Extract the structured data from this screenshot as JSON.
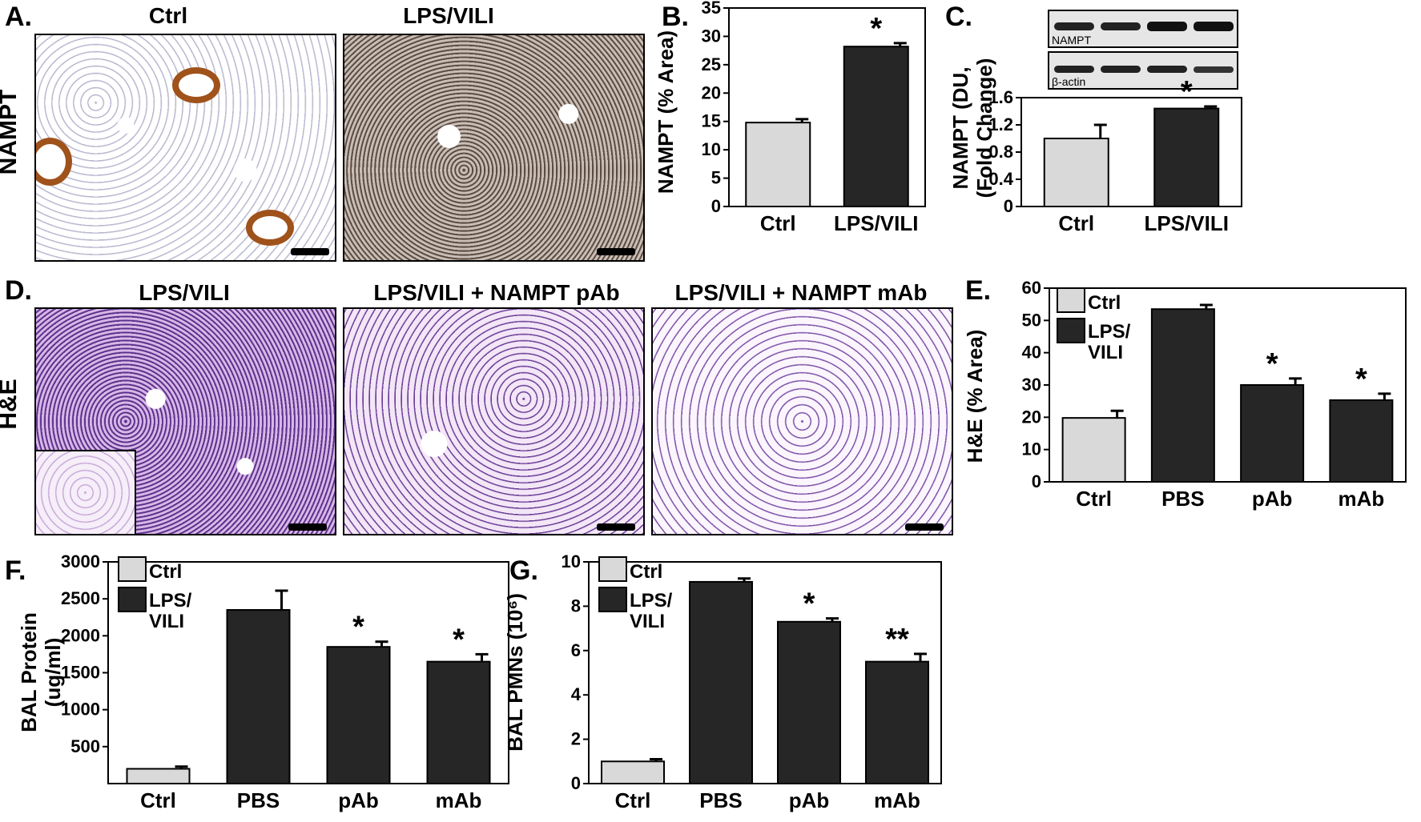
{
  "panels": {
    "A": {
      "label": "A.",
      "row_label": "NAMPT",
      "titles": [
        "Ctrl",
        "LPS/VILI"
      ]
    },
    "B": {
      "label": "B."
    },
    "C": {
      "label": "C.",
      "blot_labels": [
        "NAMPT",
        "β-actin"
      ]
    },
    "D": {
      "label": "D.",
      "row_label": "H&E",
      "titles": [
        "LPS/VILI",
        "LPS/VILI + NAMPT pAb",
        "LPS/VILI + NAMPT mAb"
      ]
    },
    "E": {
      "label": "E."
    },
    "F": {
      "label": "F."
    },
    "G": {
      "label": "G."
    }
  },
  "colors": {
    "ctrl": "#d9d9d9",
    "treated": "#262626",
    "axis": "#000000"
  },
  "chart_data": [
    {
      "id": "B",
      "type": "bar",
      "categories": [
        "Ctrl",
        "LPS/VILI"
      ],
      "values": [
        14.8,
        28.2
      ],
      "errors": [
        0.6,
        0.6
      ],
      "annotations": [
        "",
        "*"
      ],
      "ylabel": "NAMPT (% Area)",
      "ylim": [
        0,
        35
      ],
      "yticks": [
        0,
        5,
        10,
        15,
        20,
        25,
        30,
        35
      ]
    },
    {
      "id": "C",
      "type": "bar",
      "categories": [
        "Ctrl",
        "LPS/VILI"
      ],
      "values": [
        1.0,
        1.44
      ],
      "errors": [
        0.2,
        0.03
      ],
      "annotations": [
        "",
        "*"
      ],
      "ylabel": "NAMPT (DU, (Fold Change)",
      "ylabel_lines": [
        "NAMPT (DU,",
        "(Fold Change)"
      ],
      "ylim": [
        0,
        1.6
      ],
      "yticks": [
        0,
        0.4,
        0.8,
        1.2,
        1.6
      ],
      "ytick_labels": [
        "0",
        "0.4",
        "0.8",
        "1.2",
        "1.6"
      ]
    },
    {
      "id": "E",
      "type": "bar",
      "categories": [
        "Ctrl",
        "PBS",
        "pAb",
        "mAb"
      ],
      "values": [
        19.8,
        53.5,
        30.0,
        25.3
      ],
      "errors": [
        2.2,
        1.3,
        2.0,
        2.0
      ],
      "annotations": [
        "",
        "",
        "*",
        "*"
      ],
      "ylabel": "H&E (% Area)",
      "ylim": [
        0,
        60
      ],
      "yticks": [
        0,
        10,
        20,
        30,
        40,
        50,
        60
      ],
      "legend": [
        "Ctrl",
        "LPS/ VILI"
      ]
    },
    {
      "id": "F",
      "type": "bar",
      "categories": [
        "Ctrl",
        "PBS",
        "pAb",
        "mAb"
      ],
      "values": [
        200,
        2350,
        1850,
        1650
      ],
      "errors": [
        30,
        260,
        70,
        100
      ],
      "annotations": [
        "",
        "",
        "*",
        "*"
      ],
      "ylabel": "BAL Protein (ug/ml)",
      "ylabel_lines": [
        "BAL Protein",
        "(ug/ml)"
      ],
      "ylim": [
        0,
        3000
      ],
      "yticks": [
        500,
        1000,
        1500,
        2000,
        2500,
        3000
      ],
      "legend": [
        "Ctrl",
        "LPS/ VILI"
      ]
    },
    {
      "id": "G",
      "type": "bar",
      "categories": [
        "Ctrl",
        "PBS",
        "pAb",
        "mAb"
      ],
      "values": [
        1.0,
        9.1,
        7.3,
        5.5
      ],
      "errors": [
        0.1,
        0.15,
        0.15,
        0.35
      ],
      "annotations": [
        "",
        "",
        "*",
        "**"
      ],
      "ylabel": "BAL PMNs (10⁶)",
      "ylim": [
        0,
        10
      ],
      "yticks": [
        0,
        2,
        4,
        6,
        8,
        10
      ],
      "legend": [
        "Ctrl",
        "LPS/ VILI"
      ]
    }
  ]
}
